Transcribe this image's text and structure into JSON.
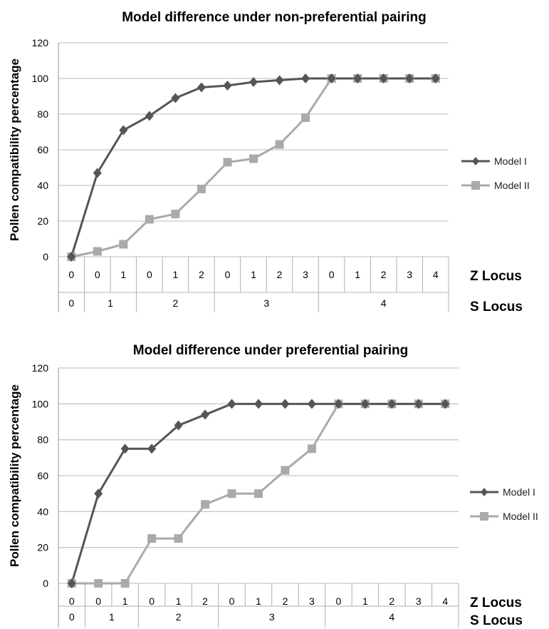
{
  "chart_data": [
    {
      "type": "line",
      "title": "Model difference under non-preferential pairing",
      "ylabel": "Pollen compatibility percentage",
      "ylim": [
        0,
        120
      ],
      "yticks": [
        0,
        20,
        40,
        60,
        80,
        100,
        120
      ],
      "grid": true,
      "legend_position": "right",
      "categories": {
        "z_locus": [
          "0",
          "0",
          "1",
          "0",
          "1",
          "2",
          "0",
          "1",
          "2",
          "3",
          "0",
          "1",
          "2",
          "3",
          "4"
        ],
        "s_locus_groups": [
          {
            "label": "0",
            "count": 1
          },
          {
            "label": "1",
            "count": 2
          },
          {
            "label": "2",
            "count": 3
          },
          {
            "label": "3",
            "count": 4
          },
          {
            "label": "4",
            "count": 5
          }
        ]
      },
      "row_labels": [
        "Z Locus",
        "S Locus"
      ],
      "series": [
        {
          "name": "Model I",
          "color": "#555555",
          "marker": "diamond",
          "values": [
            0,
            47,
            71,
            79,
            89,
            95,
            96,
            98,
            99,
            100,
            100,
            100,
            100,
            100,
            100
          ]
        },
        {
          "name": "Model II",
          "color": "#aaaaaa",
          "marker": "square",
          "values": [
            0,
            3,
            7,
            21,
            24,
            38,
            53,
            55,
            63,
            78,
            100,
            100,
            100,
            100,
            100
          ]
        }
      ]
    },
    {
      "type": "line",
      "title": "Model difference under preferential pairing",
      "ylabel": "Pollen compatibility percentage",
      "ylim": [
        0,
        120
      ],
      "yticks": [
        0,
        20,
        40,
        60,
        80,
        100,
        120
      ],
      "grid": true,
      "legend_position": "right",
      "categories": {
        "z_locus": [
          "0",
          "0",
          "1",
          "0",
          "1",
          "2",
          "0",
          "1",
          "2",
          "3",
          "0",
          "1",
          "2",
          "3",
          "4"
        ],
        "s_locus_groups": [
          {
            "label": "0",
            "count": 1
          },
          {
            "label": "1",
            "count": 2
          },
          {
            "label": "2",
            "count": 3
          },
          {
            "label": "3",
            "count": 4
          },
          {
            "label": "4",
            "count": 5
          }
        ]
      },
      "row_labels": [
        "Z Locus",
        "S Locus"
      ],
      "series": [
        {
          "name": "Model I",
          "color": "#555555",
          "marker": "diamond",
          "values": [
            0,
            50,
            75,
            75,
            88,
            94,
            100,
            100,
            100,
            100,
            100,
            100,
            100,
            100,
            100
          ]
        },
        {
          "name": "Model II",
          "color": "#aaaaaa",
          "marker": "square",
          "values": [
            0,
            0,
            0,
            25,
            25,
            44,
            50,
            50,
            63,
            75,
            100,
            100,
            100,
            100,
            100
          ]
        }
      ]
    }
  ]
}
